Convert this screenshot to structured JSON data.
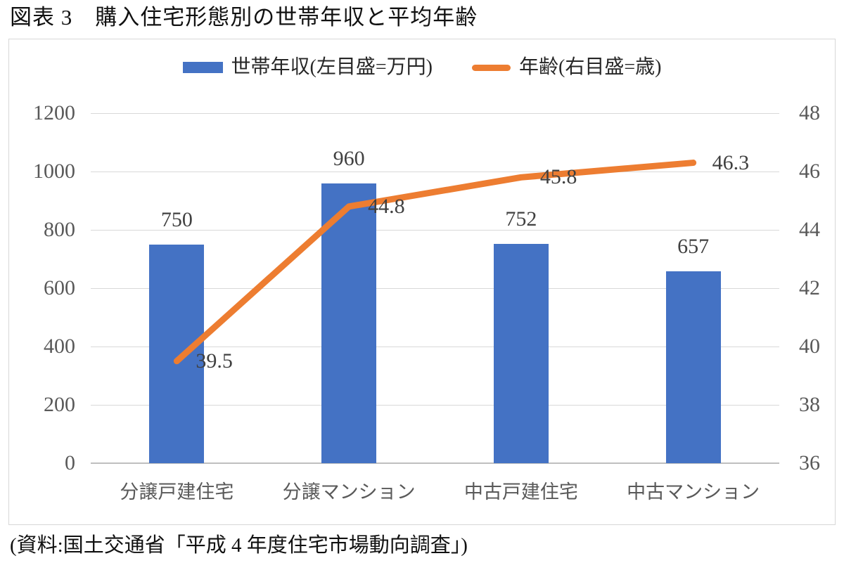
{
  "title": "図表 3　購入住宅形態別の世帯年収と平均年齢",
  "source_note": "(資料:国土交通省「平成 4 年度住宅市場動向調査」)",
  "colors": {
    "bar": "#4472C4",
    "line": "#ED7D31",
    "grid": "#D9D9D9",
    "axis": "#BFBFBF",
    "tick_text": "#595959",
    "label_text": "#404040"
  },
  "legend": {
    "items": [
      {
        "label": "世帯年収(左目盛=万円)",
        "marker": "bar-swatch",
        "color": "#4472C4"
      },
      {
        "label": "年齢(右目盛=歳)",
        "marker": "line-swatch",
        "color": "#ED7D31"
      }
    ]
  },
  "chart_data": {
    "type": "bar+line",
    "title": "図表 3　購入住宅形態別の世帯年収と平均年齢",
    "categories": [
      "分譲戸建住宅",
      "分譲マンション",
      "中古戸建住宅",
      "中古マンション"
    ],
    "series": [
      {
        "name": "世帯年収(左目盛=万円)",
        "type": "bar",
        "axis": "left",
        "values": [
          750,
          960,
          752,
          657
        ],
        "color": "#4472C4"
      },
      {
        "name": "年齢(右目盛=歳)",
        "type": "line",
        "axis": "right",
        "values": [
          39.5,
          44.8,
          45.8,
          46.3
        ],
        "color": "#ED7D31"
      }
    ],
    "left_axis": {
      "label": "万円",
      "min": 0,
      "max": 1200,
      "step": 200,
      "ticks": [
        1200,
        1000,
        800,
        600,
        400,
        200,
        0
      ]
    },
    "right_axis": {
      "label": "歳",
      "min": 36,
      "max": 48,
      "step": 2,
      "ticks": [
        48,
        46,
        44,
        42,
        40,
        38,
        36
      ]
    },
    "grid": true,
    "legend_position": "top"
  }
}
